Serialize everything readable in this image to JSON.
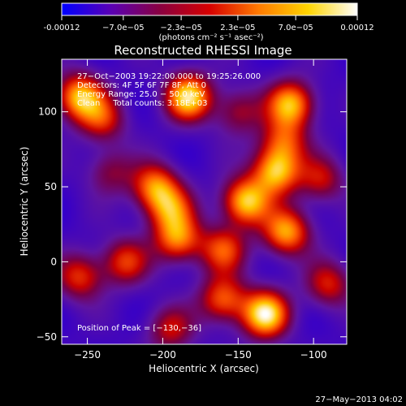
{
  "colorbar": {
    "tick_labels": [
      "-0.00012",
      "−7.0e−05",
      "−2.3e−05",
      "2.3e−05",
      "7.0e−05",
      "0.00012"
    ],
    "tick_values": [
      -0.00012,
      -7e-05,
      -2.3e-05,
      2.3e-05,
      7e-05,
      0.00012
    ],
    "unit_label": "(photons cm⁻² s⁻¹ asec⁻²)",
    "range": [
      -0.00012,
      0.00012
    ],
    "colors": [
      "#0000ff",
      "#5a00b4",
      "#8a0040",
      "#d60000",
      "#ff7a00",
      "#ffd400",
      "#ffffff"
    ]
  },
  "chart_data": {
    "type": "heatmap",
    "title": "Reconstructed RHESSI Image",
    "xlabel": "Heliocentric X (arcsec)",
    "ylabel": "Heliocentric Y (arcsec)",
    "xlim": [
      -267,
      -78
    ],
    "ylim": [
      -55,
      135
    ],
    "xticks": [
      -250,
      -200,
      -150,
      -100
    ],
    "yticks": [
      -50,
      0,
      50,
      100
    ],
    "xtick_labels": [
      "−250",
      "−200",
      "−150",
      "−100"
    ],
    "ytick_labels": [
      "−50",
      "0",
      "50",
      "100"
    ],
    "annotations": [
      "27−Oct−2003 19:22:00.000 to 19:25:26.000",
      "Detectors: 4F 5F 6F 7F 8F, Att 0",
      "Energy Range: 25.0 − 50.0 keV",
      "Clean     Total counts: 3.18E+03"
    ],
    "peak_label": "Position of Peak = [−130,−36]",
    "peak": [
      -130,
      -36
    ],
    "sources": [
      {
        "x": -132,
        "y": -35,
        "v": 1.0
      },
      {
        "x": -183,
        "y": 110,
        "v": 0.95
      },
      {
        "x": -115,
        "y": 105,
        "v": 0.85
      },
      {
        "x": -255,
        "y": 110,
        "v": 0.85
      },
      {
        "x": -240,
        "y": 95,
        "v": 0.5
      },
      {
        "x": -205,
        "y": 50,
        "v": 0.7
      },
      {
        "x": -195,
        "y": 35,
        "v": 0.6
      },
      {
        "x": -190,
        "y": 15,
        "v": 0.7
      },
      {
        "x": -125,
        "y": 60,
        "v": 0.85
      },
      {
        "x": -145,
        "y": 40,
        "v": 0.9
      },
      {
        "x": -118,
        "y": 20,
        "v": 0.8
      },
      {
        "x": -160,
        "y": 8,
        "v": 0.6
      },
      {
        "x": -225,
        "y": 0,
        "v": 0.55
      },
      {
        "x": -255,
        "y": -10,
        "v": 0.55
      },
      {
        "x": -160,
        "y": -25,
        "v": 0.65
      },
      {
        "x": -195,
        "y": -45,
        "v": 0.45
      },
      {
        "x": -120,
        "y": 80,
        "v": 0.55
      },
      {
        "x": -90,
        "y": -15,
        "v": 0.5
      },
      {
        "x": -235,
        "y": 60,
        "v": 0.35
      },
      {
        "x": -95,
        "y": 55,
        "v": 0.45
      },
      {
        "x": -150,
        "y": 100,
        "v": 0.4
      }
    ]
  },
  "footer": {
    "timestamp": "27−May−2013 04:02"
  }
}
